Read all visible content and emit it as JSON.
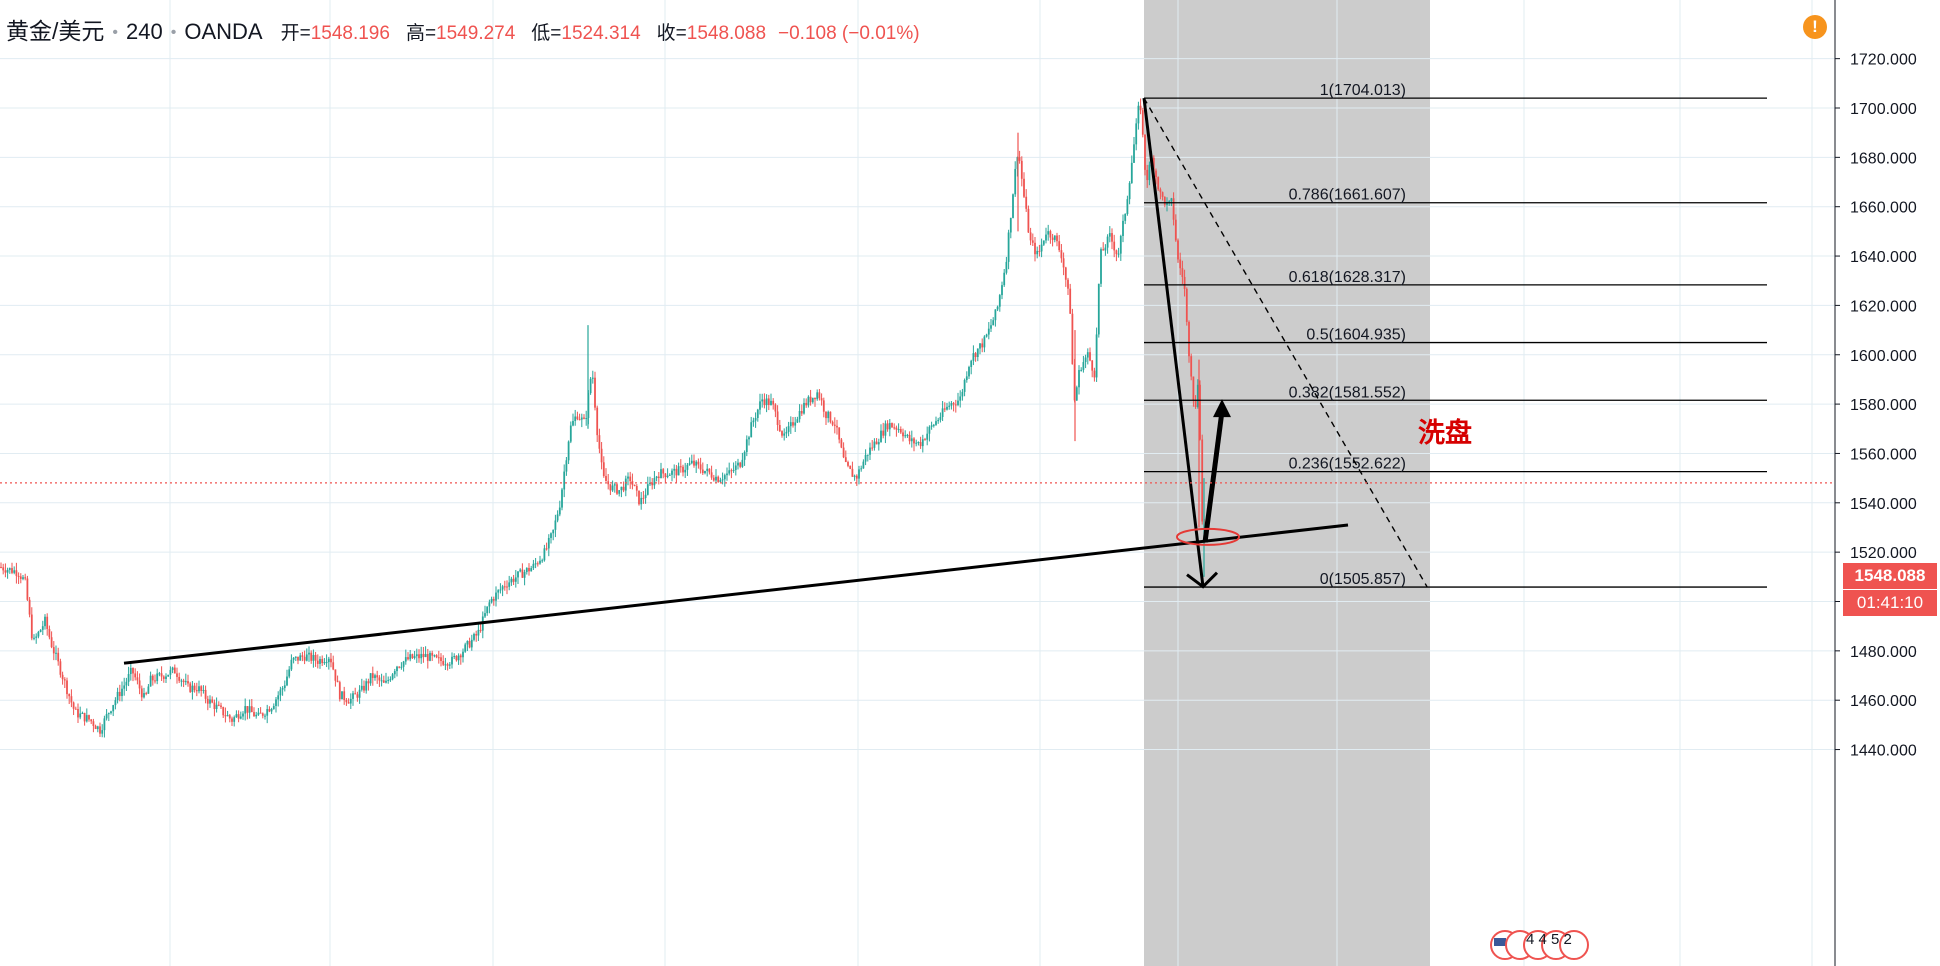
{
  "header": {
    "symbol": "黄金/美元",
    "interval": "240",
    "broker": "OANDA",
    "open_label": "开=",
    "open": "1548.196",
    "high_label": "高=",
    "high": "1549.274",
    "low_label": "低=",
    "low": "1524.314",
    "close_label": "收=",
    "close": "1548.088",
    "change": "−0.108 (−0.01%)"
  },
  "alert_icon": "!",
  "price_badge": "1548.088",
  "countdown_badge": "01:41:10",
  "event_markers": "4 4 5 2",
  "colors": {
    "up": "#26a69a",
    "down": "#ef5350",
    "fib_zone": "#cccccc",
    "annotation_text": "#d60000",
    "alert": "#f7941d"
  },
  "chart_data": {
    "type": "candlestick",
    "title": "",
    "xlabel": "",
    "ylabel": "",
    "ylim": [
      1429,
      1744
    ],
    "y_ticks": [
      "1720.000",
      "1700.000",
      "1680.000",
      "1660.000",
      "1640.000",
      "1620.000",
      "1600.000",
      "1580.000",
      "1560.000",
      "1540.000",
      "1520.000",
      "1500.000",
      "1480.000",
      "1460.000",
      "1440.000"
    ],
    "y_tick_values": [
      1720,
      1700,
      1680,
      1660,
      1640,
      1620,
      1600,
      1580,
      1560,
      1540,
      1520,
      1500,
      1480,
      1460,
      1440
    ],
    "current_price": 1548.088,
    "price_path": [
      [
        0,
        1514
      ],
      [
        18,
        1512
      ],
      [
        25,
        1508
      ],
      [
        33,
        1483
      ],
      [
        45,
        1492
      ],
      [
        52,
        1482
      ],
      [
        64,
        1468
      ],
      [
        75,
        1455
      ],
      [
        90,
        1452
      ],
      [
        100,
        1448
      ],
      [
        112,
        1458
      ],
      [
        124,
        1466
      ],
      [
        132,
        1472
      ],
      [
        145,
        1460
      ],
      [
        150,
        1468
      ],
      [
        162,
        1470
      ],
      [
        175,
        1472
      ],
      [
        188,
        1465
      ],
      [
        198,
        1465
      ],
      [
        208,
        1460
      ],
      [
        220,
        1456
      ],
      [
        232,
        1452
      ],
      [
        245,
        1457
      ],
      [
        258,
        1453
      ],
      [
        272,
        1458
      ],
      [
        284,
        1466
      ],
      [
        292,
        1476
      ],
      [
        305,
        1478
      ],
      [
        318,
        1476
      ],
      [
        330,
        1478
      ],
      [
        340,
        1462
      ],
      [
        350,
        1460
      ],
      [
        362,
        1464
      ],
      [
        372,
        1470
      ],
      [
        385,
        1466
      ],
      [
        396,
        1474
      ],
      [
        410,
        1477
      ],
      [
        425,
        1478
      ],
      [
        438,
        1476
      ],
      [
        452,
        1476
      ],
      [
        465,
        1481
      ],
      [
        478,
        1487
      ],
      [
        490,
        1500
      ],
      [
        505,
        1507
      ],
      [
        520,
        1511
      ],
      [
        533,
        1514
      ],
      [
        545,
        1520
      ],
      [
        553,
        1528
      ],
      [
        560,
        1540
      ],
      [
        565,
        1555
      ],
      [
        570,
        1570
      ],
      [
        577,
        1576
      ],
      [
        585,
        1572
      ],
      [
        592,
        1595
      ],
      [
        597,
        1570
      ],
      [
        603,
        1550
      ],
      [
        612,
        1546
      ],
      [
        620,
        1545
      ],
      [
        630,
        1550
      ],
      [
        640,
        1540
      ],
      [
        648,
        1546
      ],
      [
        658,
        1552
      ],
      [
        668,
        1552
      ],
      [
        680,
        1553
      ],
      [
        692,
        1556
      ],
      [
        705,
        1553
      ],
      [
        718,
        1550
      ],
      [
        730,
        1552
      ],
      [
        740,
        1556
      ],
      [
        752,
        1572
      ],
      [
        762,
        1582
      ],
      [
        772,
        1580
      ],
      [
        784,
        1566
      ],
      [
        795,
        1574
      ],
      [
        805,
        1580
      ],
      [
        818,
        1585
      ],
      [
        826,
        1576
      ],
      [
        835,
        1572
      ],
      [
        845,
        1555
      ],
      [
        856,
        1550
      ],
      [
        867,
        1560
      ],
      [
        878,
        1566
      ],
      [
        888,
        1572
      ],
      [
        900,
        1570
      ],
      [
        910,
        1565
      ],
      [
        920,
        1564
      ],
      [
        930,
        1570
      ],
      [
        940,
        1575
      ],
      [
        950,
        1580
      ],
      [
        960,
        1582
      ],
      [
        970,
        1598
      ],
      [
        985,
        1606
      ],
      [
        997,
        1618
      ],
      [
        1006,
        1638
      ],
      [
        1014,
        1670
      ],
      [
        1018,
        1684
      ],
      [
        1024,
        1664
      ],
      [
        1030,
        1646
      ],
      [
        1038,
        1640
      ],
      [
        1046,
        1650
      ],
      [
        1054,
        1648
      ],
      [
        1062,
        1640
      ],
      [
        1070,
        1620
      ],
      [
        1074,
        1580
      ],
      [
        1080,
        1595
      ],
      [
        1088,
        1600
      ],
      [
        1095,
        1592
      ],
      [
        1100,
        1640
      ],
      [
        1110,
        1648
      ],
      [
        1118,
        1640
      ],
      [
        1126,
        1660
      ],
      [
        1133,
        1682
      ],
      [
        1140,
        1704
      ],
      [
        1146,
        1670
      ],
      [
        1152,
        1680
      ],
      [
        1160,
        1665
      ],
      [
        1168,
        1660
      ],
      [
        1172,
        1662
      ],
      [
        1178,
        1638
      ],
      [
        1184,
        1630
      ],
      [
        1188,
        1605
      ],
      [
        1192,
        1590
      ],
      [
        1195,
        1575
      ],
      [
        1199,
        1595
      ],
      [
        1201,
        1540
      ],
      [
        1204,
        1520
      ],
      [
        1206,
        1548
      ]
    ],
    "annotations": {
      "fibonacci_levels": [
        {
          "label": "1(1704.013)",
          "value": 1704.013
        },
        {
          "label": "0.786(1661.607)",
          "value": 1661.607
        },
        {
          "label": "0.618(1628.317)",
          "value": 1628.317
        },
        {
          "label": "0.5(1604.935)",
          "value": 1604.935
        },
        {
          "label": "0.382(1581.552)",
          "value": 1581.552
        },
        {
          "label": "0.236(1552.622)",
          "value": 1552.622
        },
        {
          "label": "0(1505.857)",
          "value": 1505.857
        }
      ],
      "text_label": "洗盘",
      "trend_line": [
        {
          "x": 124,
          "price": 1475
        },
        {
          "x": 1348,
          "price": 1531
        }
      ],
      "dashed_line": [
        {
          "x": 1144,
          "price": 1704
        },
        {
          "x": 1427,
          "price": 1506
        }
      ],
      "fib_zone_x": [
        1144,
        1430
      ],
      "down_arrow": [
        {
          "x": 1144,
          "price": 1704
        },
        {
          "x": 1203,
          "price": 1506
        }
      ],
      "up_arrow": [
        {
          "x": 1205,
          "price": 1524
        },
        {
          "x": 1222,
          "price": 1582
        }
      ],
      "ellipse": {
        "x": 1207,
        "price": 1527
      }
    }
  }
}
